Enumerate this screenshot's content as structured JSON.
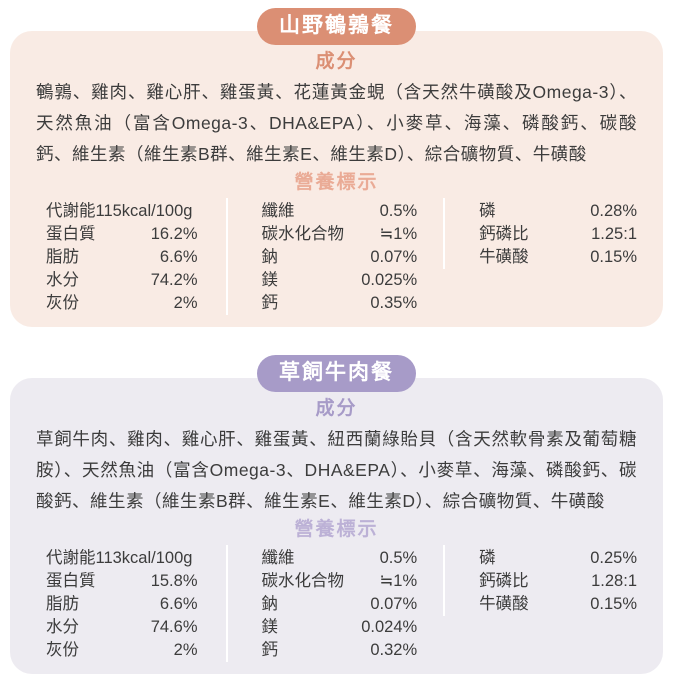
{
  "page": {
    "background": "#FFFFFF",
    "text_color": "#3C3C3C"
  },
  "cards": [
    {
      "title": "山野鵪鶉餐",
      "colors": {
        "badge_bg": "#DB8F74",
        "badge_text": "#FFFFFF",
        "card_bg": "#F9EBE4",
        "ingredients_heading": "#DB8F74",
        "nutrition_heading": "#EAAB96",
        "divider": "#FFFFFF"
      },
      "ingredients_heading": "成分",
      "ingredients": "鵪鶉、雞肉、雞心肝、雞蛋黃、花蓮黃金蜆（含天然牛磺酸及Omega-3）、天然魚油（富含Omega-3、DHA&EPA）、小麥草、海藻、磷酸鈣、碳酸鈣、維生素（維生素B群、維生素E、維生素D）、綜合礦物質、牛磺酸",
      "nutrition_heading": "營養標示",
      "energy": "代謝能115kcal/100g",
      "col1": [
        {
          "l": "蛋白質",
          "v": "16.2%"
        },
        {
          "l": "脂肪",
          "v": "6.6%"
        },
        {
          "l": "水分",
          "v": "74.2%"
        },
        {
          "l": "灰份",
          "v": "2%"
        }
      ],
      "col2": [
        {
          "l": "纖維",
          "v": "0.5%"
        },
        {
          "l": "碳水化合物",
          "v": "≒1%"
        },
        {
          "l": "鈉",
          "v": "0.07%"
        },
        {
          "l": "鎂",
          "v": "0.025%"
        },
        {
          "l": "鈣",
          "v": "0.35%"
        }
      ],
      "col3": [
        {
          "l": "磷",
          "v": "0.28%"
        },
        {
          "l": "鈣磷比",
          "v": "1.25:1"
        },
        {
          "l": "牛磺酸",
          "v": "0.15%"
        }
      ]
    },
    {
      "title": "草飼牛肉餐",
      "colors": {
        "badge_bg": "#A79BC8",
        "badge_text": "#FFFFFF",
        "card_bg": "#EDEBF1",
        "ingredients_heading": "#A79BC8",
        "nutrition_heading": "#BCB1D6",
        "divider": "#FFFFFF"
      },
      "ingredients_heading": "成分",
      "ingredients": "草飼牛肉、雞肉、雞心肝、雞蛋黃、紐西蘭綠貽貝（含天然軟骨素及葡萄糖胺）、天然魚油（富含Omega-3、DHA&EPA）、小麥草、海藻、磷酸鈣、碳酸鈣、維生素（維生素B群、維生素E、維生素D）、綜合礦物質、牛磺酸",
      "nutrition_heading": "營養標示",
      "energy": "代謝能113kcal/100g",
      "col1": [
        {
          "l": "蛋白質",
          "v": "15.8%"
        },
        {
          "l": "脂肪",
          "v": "6.6%"
        },
        {
          "l": "水分",
          "v": "74.6%"
        },
        {
          "l": "灰份",
          "v": "2%"
        }
      ],
      "col2": [
        {
          "l": "纖維",
          "v": "0.5%"
        },
        {
          "l": "碳水化合物",
          "v": "≒1%"
        },
        {
          "l": "鈉",
          "v": "0.07%"
        },
        {
          "l": "鎂",
          "v": "0.024%"
        },
        {
          "l": "鈣",
          "v": "0.32%"
        }
      ],
      "col3": [
        {
          "l": "磷",
          "v": "0.25%"
        },
        {
          "l": "鈣磷比",
          "v": "1.28:1"
        },
        {
          "l": "牛磺酸",
          "v": "0.15%"
        }
      ]
    }
  ]
}
